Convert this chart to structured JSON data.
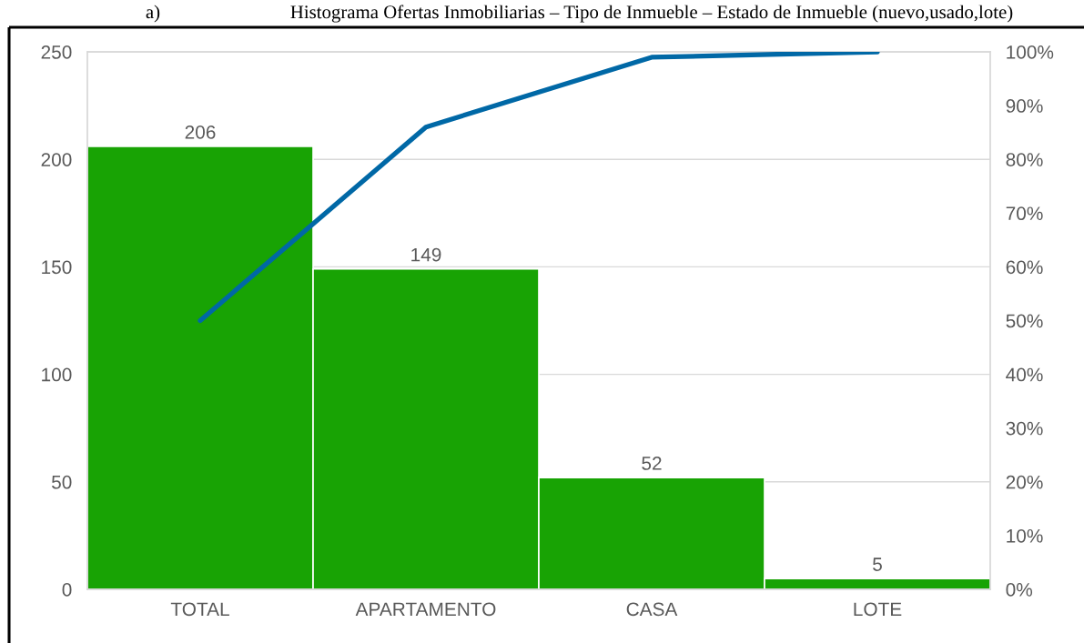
{
  "chart_data": {
    "type": "bar",
    "title": "Histograma Ofertas Inmobiliarias – Tipo de Inmueble – Estado de Inmueble (nuevo,usado,lote)",
    "annotations": [
      "a)"
    ],
    "categories": [
      "TOTAL",
      "APARTAMENTO",
      "CASA",
      "LOTE"
    ],
    "series": [
      {
        "color": "#18a304",
        "values": [
          206,
          149,
          52,
          5
        ],
        "value_labels": [
          "206",
          "149",
          "52",
          "5"
        ]
      },
      {
        "type": "line",
        "axis": "y2",
        "color": "#0068a6",
        "values": [
          50,
          86,
          99,
          100
        ]
      }
    ],
    "ylim": [
      0,
      250
    ],
    "yticks": [
      0,
      50,
      100,
      150,
      200,
      250
    ],
    "y2lim": [
      0,
      100
    ],
    "y2ticks": [
      {
        "value": 0,
        "label": "0%"
      },
      {
        "value": 10,
        "label": "10%"
      },
      {
        "value": 20,
        "label": "20%"
      },
      {
        "value": 30,
        "label": "30%"
      },
      {
        "value": 40,
        "label": "40%"
      },
      {
        "value": 50,
        "label": "50%"
      },
      {
        "value": 60,
        "label": "60%"
      },
      {
        "value": 70,
        "label": "70%"
      },
      {
        "value": 80,
        "label": "80%"
      },
      {
        "value": 90,
        "label": "90%"
      },
      {
        "value": 100,
        "label": "100%"
      }
    ],
    "grid": "y"
  }
}
